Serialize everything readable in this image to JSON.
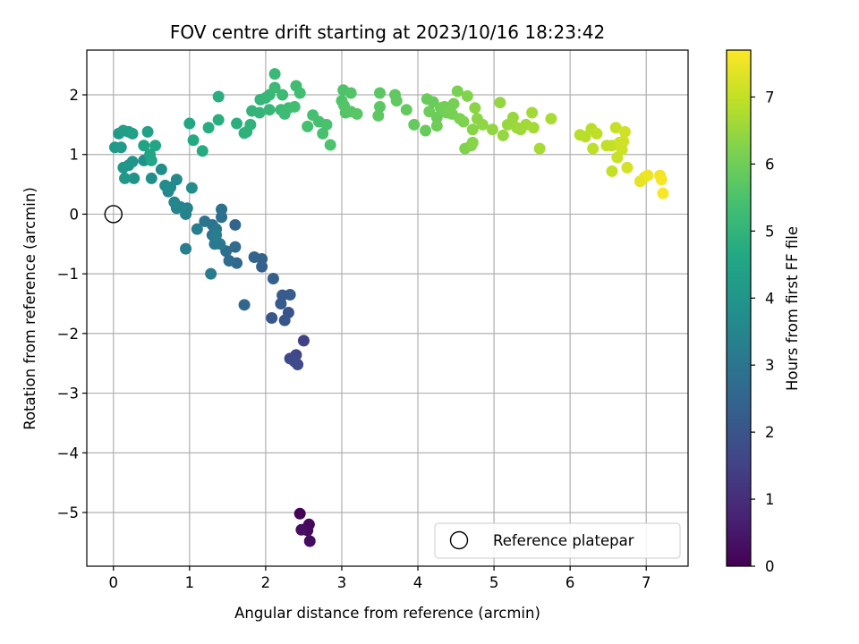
{
  "chart_data": {
    "type": "scatter",
    "title": "FOV centre drift starting at 2023/10/16 18:23:42",
    "xlabel": "Angular distance from reference (arcmin)",
    "ylabel": "Rotation from reference (arcmin)",
    "xlim": [
      -0.35,
      7.55
    ],
    "ylim": [
      -5.9,
      2.75
    ],
    "xticks": [
      0,
      1,
      2,
      3,
      4,
      5,
      6,
      7
    ],
    "yticks": [
      -5,
      -4,
      -3,
      -2,
      -1,
      0,
      1,
      2
    ],
    "grid": true,
    "colorbar": {
      "label": "Hours from first FF file",
      "range": [
        0,
        7.7
      ],
      "ticks": [
        0,
        1,
        2,
        3,
        4,
        5,
        6,
        7
      ],
      "colormap": "viridis"
    },
    "legend": {
      "position": "lower-right",
      "entries": [
        "Reference platepar"
      ]
    },
    "reference": {
      "x": 0,
      "y": 0,
      "label": "Reference platepar"
    },
    "points": [
      [
        2.45,
        -5.02,
        0.05
      ],
      [
        2.52,
        -5.28,
        0.1
      ],
      [
        2.57,
        -5.2,
        0.15
      ],
      [
        2.55,
        -5.3,
        0.2
      ],
      [
        2.58,
        -5.48,
        0.25
      ],
      [
        2.47,
        -5.29,
        0.3
      ],
      [
        2.5,
        -2.12,
        1.5
      ],
      [
        2.4,
        -2.36,
        1.6
      ],
      [
        2.32,
        -2.42,
        1.65
      ],
      [
        2.38,
        -2.47,
        1.7
      ],
      [
        2.42,
        -2.52,
        1.75
      ],
      [
        2.3,
        -1.65,
        2.0
      ],
      [
        2.25,
        -1.78,
        2.05
      ],
      [
        2.08,
        -1.74,
        2.1
      ],
      [
        2.2,
        -1.5,
        2.15
      ],
      [
        2.22,
        -1.36,
        2.2
      ],
      [
        2.32,
        -1.35,
        2.25
      ],
      [
        2.1,
        -1.08,
        2.3
      ],
      [
        1.95,
        -0.88,
        2.35
      ],
      [
        1.95,
        -0.75,
        2.4
      ],
      [
        1.85,
        -0.72,
        2.45
      ],
      [
        1.6,
        -0.18,
        2.5
      ],
      [
        1.72,
        -1.52,
        2.55
      ],
      [
        1.62,
        -0.82,
        2.6
      ],
      [
        1.6,
        -0.55,
        2.65
      ],
      [
        1.52,
        -0.78,
        2.7
      ],
      [
        1.48,
        -0.62,
        2.75
      ],
      [
        1.42,
        -0.05,
        2.8
      ],
      [
        1.42,
        0.08,
        2.85
      ],
      [
        1.3,
        -0.18,
        2.9
      ],
      [
        1.3,
        -0.35,
        2.95
      ],
      [
        1.2,
        -0.12,
        3.0
      ],
      [
        1.35,
        -0.25,
        3.05
      ],
      [
        1.33,
        -0.5,
        3.1
      ],
      [
        1.4,
        -0.5,
        3.15
      ],
      [
        1.28,
        -1.0,
        3.2
      ],
      [
        1.35,
        -0.35,
        3.22
      ],
      [
        1.1,
        -0.25,
        3.25
      ],
      [
        0.95,
        -0.58,
        3.3
      ],
      [
        0.95,
        0.0,
        3.35
      ],
      [
        0.97,
        0.1,
        3.4
      ],
      [
        0.88,
        0.12,
        3.45
      ],
      [
        0.83,
        0.1,
        3.48
      ],
      [
        0.8,
        0.2,
        3.5
      ],
      [
        0.72,
        0.38,
        3.55
      ],
      [
        0.83,
        0.58,
        3.6
      ],
      [
        0.75,
        0.45,
        3.65
      ],
      [
        0.68,
        0.48,
        3.7
      ],
      [
        1.03,
        0.44,
        3.72
      ],
      [
        0.63,
        0.75,
        3.75
      ],
      [
        0.5,
        0.6,
        3.8
      ],
      [
        0.45,
        0.92,
        3.85
      ],
      [
        0.4,
        0.9,
        3.9
      ],
      [
        0.27,
        0.6,
        3.93
      ],
      [
        0.25,
        0.88,
        3.95
      ],
      [
        0.2,
        0.82,
        4.0
      ],
      [
        0.13,
        0.78,
        4.05
      ],
      [
        0.15,
        0.6,
        4.1
      ],
      [
        0.02,
        1.12,
        4.12
      ],
      [
        0.1,
        1.12,
        4.15
      ],
      [
        0.07,
        1.35,
        4.2
      ],
      [
        0.13,
        1.4,
        4.25
      ],
      [
        0.2,
        1.38,
        4.3
      ],
      [
        0.25,
        1.35,
        4.35
      ],
      [
        0.45,
        1.38,
        4.4
      ],
      [
        0.4,
        1.15,
        4.45
      ],
      [
        0.48,
        1.0,
        4.5
      ],
      [
        0.55,
        1.15,
        4.52
      ],
      [
        0.5,
        0.9,
        4.55
      ],
      [
        1.0,
        1.52,
        4.6
      ],
      [
        1.05,
        1.24,
        4.65
      ],
      [
        1.17,
        1.06,
        4.7
      ],
      [
        1.25,
        1.45,
        4.75
      ],
      [
        1.38,
        1.58,
        4.8
      ],
      [
        1.38,
        1.97,
        4.82
      ],
      [
        1.62,
        1.52,
        4.85
      ],
      [
        1.72,
        1.36,
        4.9
      ],
      [
        1.75,
        1.38,
        4.92
      ],
      [
        1.8,
        1.5,
        4.95
      ],
      [
        1.82,
        1.73,
        5.0
      ],
      [
        1.92,
        1.7,
        5.02
      ],
      [
        1.93,
        1.92,
        5.05
      ],
      [
        2.0,
        1.95,
        5.08
      ],
      [
        2.05,
        1.75,
        5.1
      ],
      [
        2.05,
        2.0,
        5.12
      ],
      [
        2.12,
        2.35,
        5.15
      ],
      [
        2.12,
        2.12,
        5.18
      ],
      [
        2.2,
        1.75,
        5.2
      ],
      [
        2.22,
        2.0,
        5.22
      ],
      [
        2.25,
        1.68,
        5.25
      ],
      [
        2.3,
        1.78,
        5.28
      ],
      [
        2.4,
        2.15,
        5.3
      ],
      [
        2.45,
        2.03,
        5.32
      ],
      [
        2.38,
        1.8,
        5.35
      ],
      [
        2.55,
        1.47,
        5.38
      ],
      [
        2.62,
        1.66,
        5.4
      ],
      [
        2.7,
        1.55,
        5.42
      ],
      [
        2.75,
        1.35,
        5.45
      ],
      [
        2.8,
        1.5,
        5.48
      ],
      [
        2.85,
        1.16,
        5.5
      ],
      [
        3.02,
        2.08,
        5.52
      ],
      [
        3.0,
        1.9,
        5.55
      ],
      [
        3.12,
        2.03,
        5.58
      ],
      [
        3.03,
        1.82,
        5.6
      ],
      [
        3.05,
        1.7,
        5.62
      ],
      [
        3.12,
        1.72,
        5.65
      ],
      [
        3.2,
        1.68,
        5.68
      ],
      [
        3.5,
        2.03,
        5.7
      ],
      [
        3.5,
        1.8,
        5.72
      ],
      [
        3.48,
        1.65,
        5.75
      ],
      [
        3.7,
        2.0,
        5.78
      ],
      [
        3.72,
        1.9,
        5.8
      ],
      [
        3.85,
        1.75,
        5.82
      ],
      [
        3.95,
        1.5,
        5.85
      ],
      [
        4.1,
        1.4,
        5.87
      ],
      [
        4.12,
        1.93,
        5.9
      ],
      [
        4.2,
        1.88,
        5.92
      ],
      [
        4.25,
        1.62,
        5.95
      ],
      [
        4.15,
        1.72,
        5.97
      ],
      [
        4.25,
        1.48,
        6.0
      ],
      [
        4.3,
        1.78,
        6.02
      ],
      [
        4.35,
        1.8,
        6.05
      ],
      [
        4.38,
        1.7,
        6.07
      ],
      [
        4.45,
        1.68,
        6.1
      ],
      [
        4.47,
        1.85,
        6.12
      ],
      [
        4.52,
        2.06,
        6.15
      ],
      [
        4.55,
        1.6,
        6.17
      ],
      [
        4.6,
        1.55,
        6.2
      ],
      [
        4.62,
        1.1,
        6.22
      ],
      [
        4.65,
        1.98,
        6.25
      ],
      [
        4.7,
        1.15,
        6.27
      ],
      [
        4.72,
        1.2,
        6.3
      ],
      [
        4.72,
        1.42,
        6.32
      ],
      [
        4.75,
        1.78,
        6.35
      ],
      [
        4.78,
        1.6,
        6.37
      ],
      [
        4.85,
        1.5,
        6.4
      ],
      [
        4.98,
        1.42,
        6.42
      ],
      [
        5.08,
        1.87,
        6.45
      ],
      [
        5.12,
        1.32,
        6.47
      ],
      [
        5.18,
        1.5,
        6.5
      ],
      [
        5.25,
        1.62,
        6.52
      ],
      [
        5.3,
        1.45,
        6.55
      ],
      [
        5.35,
        1.42,
        6.57
      ],
      [
        5.42,
        1.5,
        6.6
      ],
      [
        5.5,
        1.7,
        6.62
      ],
      [
        5.52,
        1.45,
        6.65
      ],
      [
        5.6,
        1.1,
        6.67
      ],
      [
        5.75,
        1.6,
        6.7
      ],
      [
        6.13,
        1.33,
        6.85
      ],
      [
        6.2,
        1.3,
        6.88
      ],
      [
        6.28,
        1.43,
        6.9
      ],
      [
        6.3,
        1.1,
        6.92
      ],
      [
        6.35,
        1.35,
        6.95
      ],
      [
        6.48,
        1.15,
        6.97
      ],
      [
        6.55,
        1.15,
        7.0
      ],
      [
        6.55,
        0.72,
        7.02
      ],
      [
        6.6,
        1.45,
        7.05
      ],
      [
        6.62,
        0.95,
        7.08
      ],
      [
        6.65,
        1.2,
        7.1
      ],
      [
        6.68,
        1.08,
        7.12
      ],
      [
        6.7,
        1.22,
        7.15
      ],
      [
        6.72,
        1.38,
        7.17
      ],
      [
        6.75,
        0.78,
        7.2
      ],
      [
        6.92,
        0.55,
        7.4
      ],
      [
        6.98,
        0.62,
        7.45
      ],
      [
        7.02,
        0.65,
        7.5
      ],
      [
        7.18,
        0.65,
        7.55
      ],
      [
        7.2,
        0.58,
        7.6
      ],
      [
        7.22,
        0.35,
        7.65
      ]
    ]
  }
}
